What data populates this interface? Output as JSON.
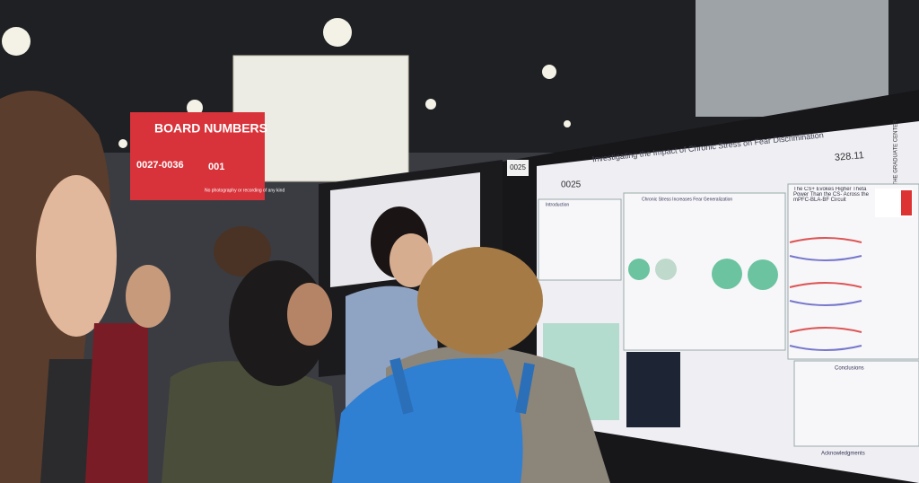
{
  "sign": {
    "title": "BOARD NUMBERS",
    "range": "0027-0036",
    "range_cut": "001",
    "notice": "No photography or recording of any kind"
  },
  "poster": {
    "board": "0025",
    "number": "328.11",
    "title": "Investigating the Impact of Chronic Stress on Fear Discrimination",
    "institution": "THE GRADUATE CENTER",
    "sections": [
      "Introduction",
      "Chronic Stress Increases Fear Generalization",
      "The CS+ Evokes Higher Theta Power Than the CS- Across the mPFC-BLA-BF Circuit",
      "Conclusions",
      "Acknowledgments"
    ]
  }
}
